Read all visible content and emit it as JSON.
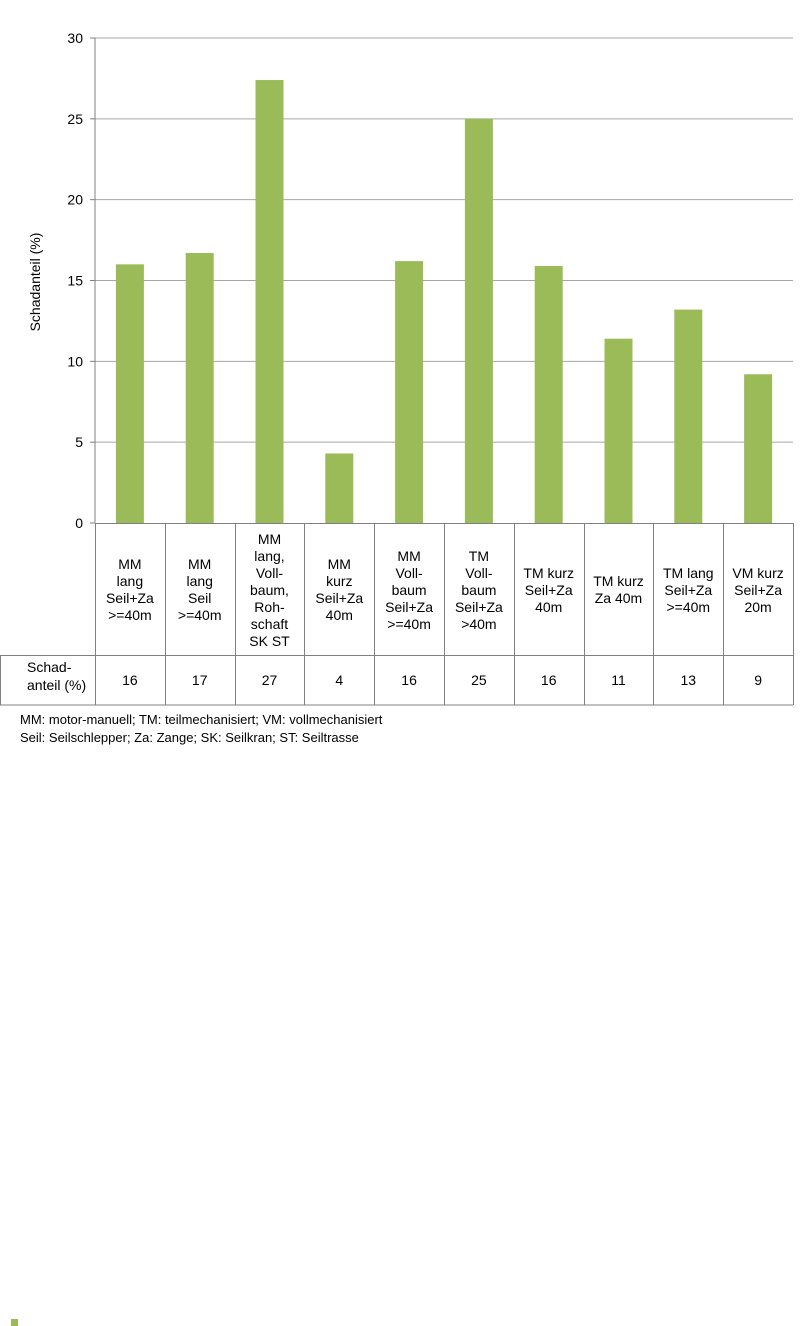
{
  "chart_data": {
    "type": "bar",
    "ylabel": "Schadanteil (%)",
    "ylim": [
      0,
      30
    ],
    "yticks": [
      0,
      5,
      10,
      15,
      20,
      25,
      30
    ],
    "categories": [
      "MM\nlang\nSeil+Za\n>=40m",
      "MM\nlang\nSeil\n>=40m",
      "MM\nlang,\nVoll-\nbaum,\nRoh-\nschaft\nSK ST",
      "MM\nkurz\nSeil+Za\n40m",
      "MM\nVoll-\nbaum\nSeil+Za\n>=40m",
      "TM\nVoll-\nbaum\nSeil+Za\n>40m",
      "TM kurz\nSeil+Za\n40m",
      "TM kurz\nZa 40m",
      "TM lang\nSeil+Za\n>=40m",
      "VM kurz\nSeil+Za\n20m"
    ],
    "series": [
      {
        "name": "Schad-\nanteil (%)",
        "color": "#9bbb59",
        "values": [
          16.0,
          16.7,
          27.4,
          4.3,
          16.2,
          25.0,
          15.9,
          11.4,
          13.2,
          9.2
        ],
        "table_labels": [
          "16",
          "17",
          "27",
          "4",
          "16",
          "25",
          "16",
          "11",
          "13",
          "9"
        ]
      }
    ]
  },
  "footnote": {
    "line1": "MM: motor-manuell; TM: teilmechanisiert; VM: vollmechanisiert",
    "line2": "Seil: Seilschlepper; Za: Zange; SK: Seilkran; ST: Seiltrasse"
  }
}
